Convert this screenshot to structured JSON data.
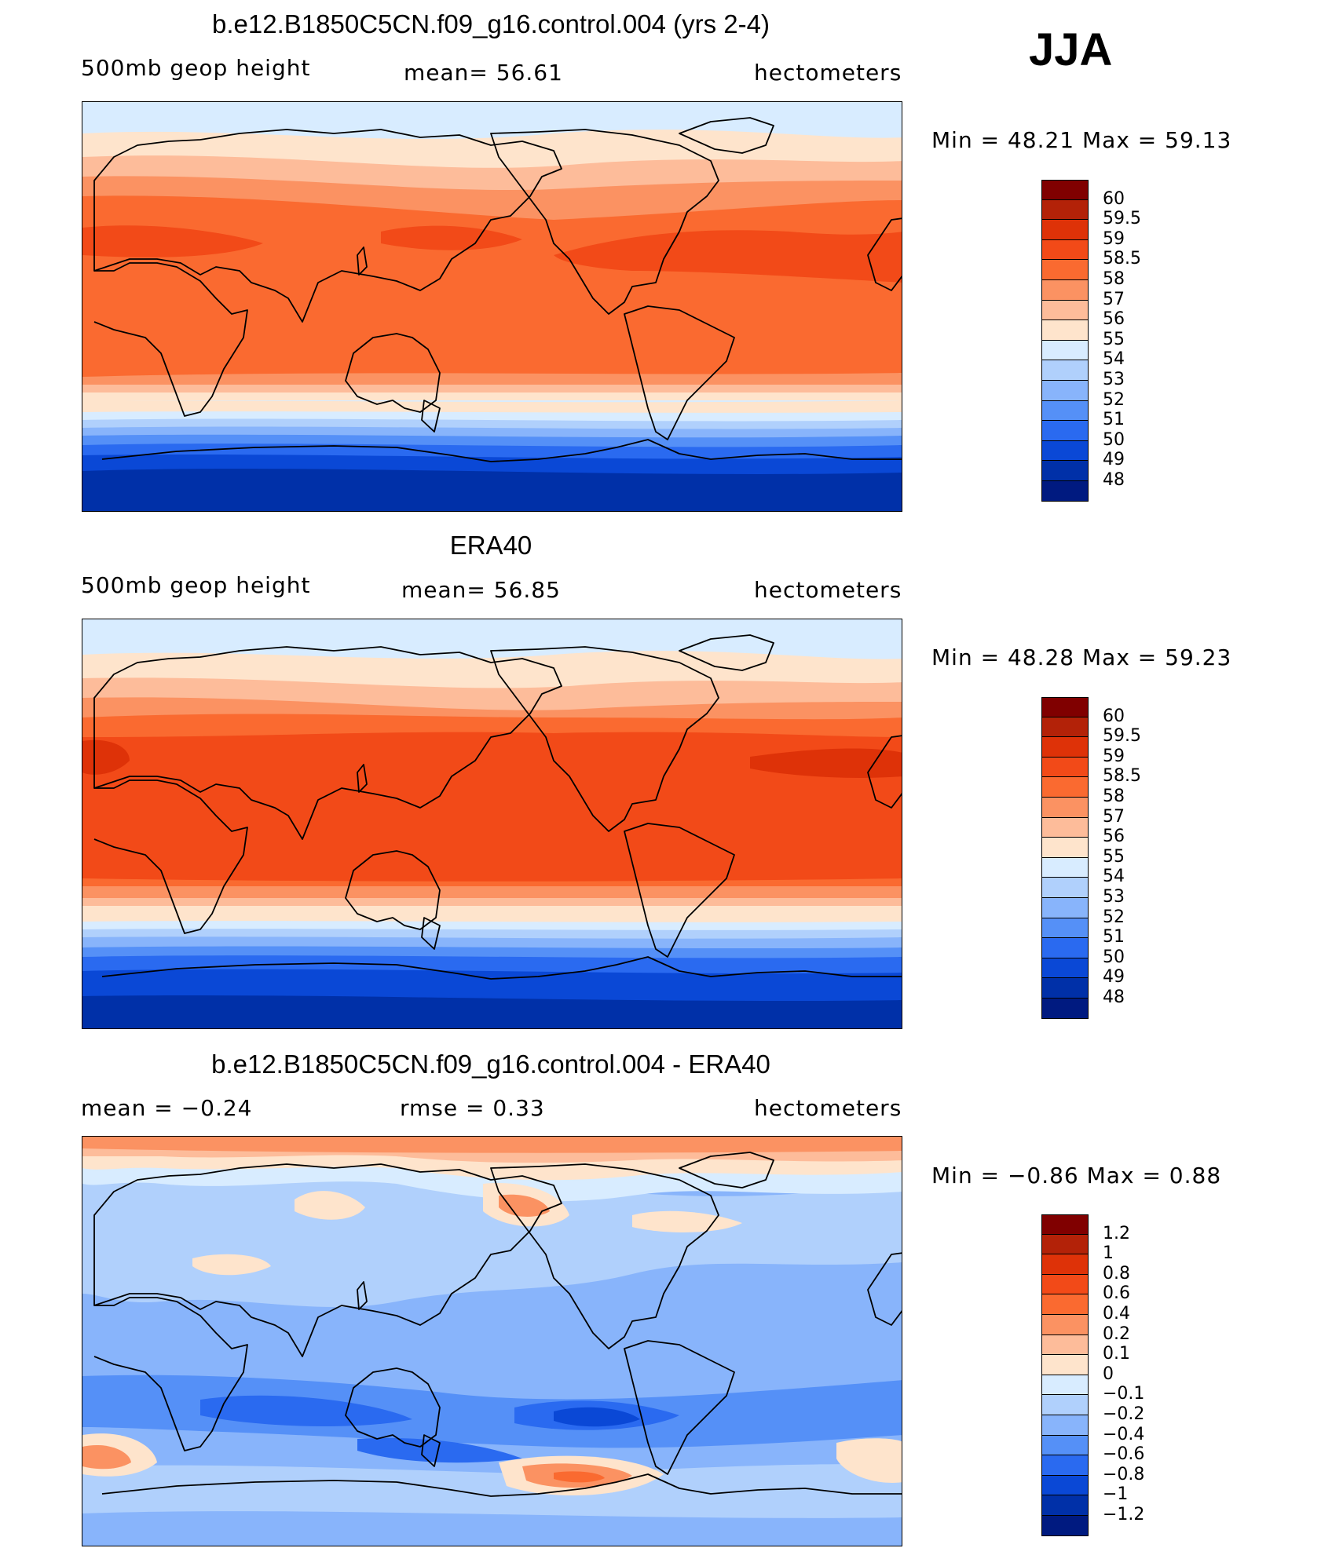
{
  "season": "JJA",
  "panels": [
    {
      "title": "b.e12.B1850C5CN.f09_g16.control.004 (yrs 2-4)",
      "left_label": "500mb geop height",
      "center_label": "mean=  56.61",
      "units": "hectometers",
      "minmax": "Min =   48.21  Max =   59.13",
      "map_type": "model",
      "colorbar": {
        "labels": [
          "60",
          "59.5",
          "59",
          "58.5",
          "58",
          "57",
          "56",
          "55",
          "54",
          "53",
          "52",
          "51",
          "50",
          "49",
          "48"
        ],
        "colors": [
          "#800000",
          "#b32208",
          "#de3208",
          "#f24a18",
          "#fa6a30",
          "#fb9262",
          "#fdbc9a",
          "#fee4cc",
          "#d8ecff",
          "#b0d0fc",
          "#88b4fb",
          "#5590f7",
          "#2a6af0",
          "#0a48d6",
          "#0030a8",
          "#001a80"
        ]
      }
    },
    {
      "title": "ERA40",
      "left_label": "500mb geop height",
      "center_label": "mean=  56.85",
      "units": "hectometers",
      "minmax": "Min =   48.28  Max =   59.23",
      "map_type": "obs",
      "colorbar": {
        "labels": [
          "60",
          "59.5",
          "59",
          "58.5",
          "58",
          "57",
          "56",
          "55",
          "54",
          "53",
          "52",
          "51",
          "50",
          "49",
          "48"
        ],
        "colors": [
          "#800000",
          "#b32208",
          "#de3208",
          "#f24a18",
          "#fa6a30",
          "#fb9262",
          "#fdbc9a",
          "#fee4cc",
          "#d8ecff",
          "#b0d0fc",
          "#88b4fb",
          "#5590f7",
          "#2a6af0",
          "#0a48d6",
          "#0030a8",
          "#001a80"
        ]
      }
    },
    {
      "title": "b.e12.B1850C5CN.f09_g16.control.004 - ERA40",
      "left_label": "mean =  −0.24",
      "center_label": "rmse =    0.33",
      "units": "hectometers",
      "minmax": "Min =  −0.86  Max =    0.88",
      "map_type": "diff",
      "colorbar": {
        "labels": [
          "1.2",
          "1",
          "0.8",
          "0.6",
          "0.4",
          "0.2",
          "0.1",
          "0",
          "−0.1",
          "−0.2",
          "−0.4",
          "−0.6",
          "−0.8",
          "−1",
          "−1.2"
        ],
        "colors": [
          "#800000",
          "#b32208",
          "#de3208",
          "#f24a18",
          "#fa6a30",
          "#fb9262",
          "#fdbc9a",
          "#fee4cc",
          "#d8ecff",
          "#b0d0fc",
          "#88b4fb",
          "#5590f7",
          "#2a6af0",
          "#0a48d6",
          "#0030a8",
          "#001a80"
        ]
      }
    }
  ],
  "chart_data": [
    {
      "type": "heatmap",
      "title": "b.e12.B1850C5CN.f09_g16.control.004 (yrs 2-4)",
      "variable": "500mb geop height",
      "units": "hectometers",
      "mean": 56.61,
      "min": 48.21,
      "max": 59.13,
      "levels": [
        48,
        49,
        50,
        51,
        52,
        53,
        54,
        55,
        56,
        57,
        58,
        58.5,
        59,
        59.5,
        60
      ]
    },
    {
      "type": "heatmap",
      "title": "ERA40",
      "variable": "500mb geop height",
      "units": "hectometers",
      "mean": 56.85,
      "min": 48.28,
      "max": 59.23,
      "levels": [
        48,
        49,
        50,
        51,
        52,
        53,
        54,
        55,
        56,
        57,
        58,
        58.5,
        59,
        59.5,
        60
      ]
    },
    {
      "type": "heatmap",
      "title": "b.e12.B1850C5CN.f09_g16.control.004 - ERA40",
      "units": "hectometers",
      "mean": -0.24,
      "rmse": 0.33,
      "min": -0.86,
      "max": 0.88,
      "levels": [
        -1.2,
        -1,
        -0.8,
        -0.6,
        -0.4,
        -0.2,
        -0.1,
        0,
        0.1,
        0.2,
        0.4,
        0.6,
        0.8,
        1,
        1.2
      ]
    }
  ]
}
